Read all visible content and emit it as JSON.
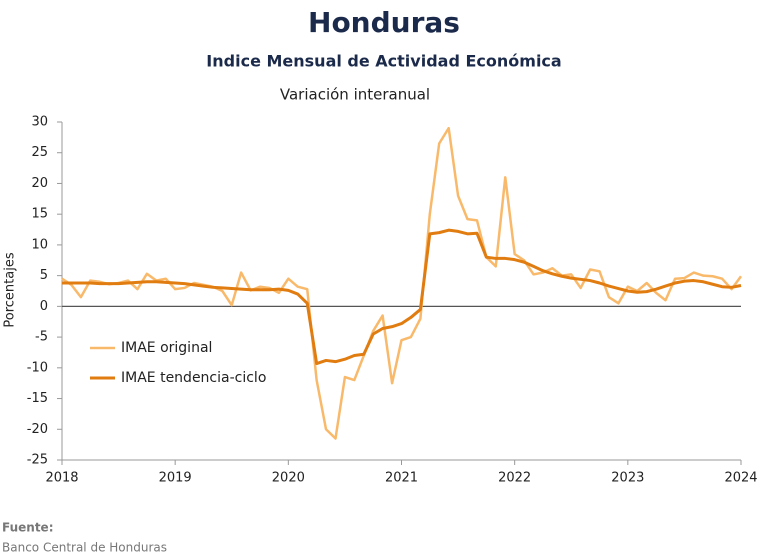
{
  "chart_data": {
    "type": "line",
    "title": "Honduras",
    "subtitle": "Indice Mensual de  Actividad Económica",
    "subtitle2": "Variación interanual",
    "y_label": "Porcentajes",
    "source_label": "Fuente:",
    "source": "Banco Central de Honduras",
    "xlim": [
      2018,
      2024
    ],
    "xticks": [
      2018,
      2019,
      2020,
      2021,
      2022,
      2023,
      2024
    ],
    "ylim": [
      -25,
      30
    ],
    "yticks": [
      -25,
      -20,
      -15,
      -10,
      -5,
      0,
      5,
      10,
      15,
      20,
      25,
      30
    ],
    "legend": "lower left",
    "x": [
      2018,
      2018.083,
      2018.167,
      2018.25,
      2018.333,
      2018.417,
      2018.5,
      2018.583,
      2018.667,
      2018.75,
      2018.833,
      2018.917,
      2019,
      2019.083,
      2019.167,
      2019.25,
      2019.333,
      2019.417,
      2019.5,
      2019.583,
      2019.667,
      2019.75,
      2019.833,
      2019.917,
      2020,
      2020.083,
      2020.167,
      2020.25,
      2020.333,
      2020.417,
      2020.5,
      2020.583,
      2020.667,
      2020.75,
      2020.833,
      2020.917,
      2021,
      2021.083,
      2021.167,
      2021.25,
      2021.333,
      2021.417,
      2021.5,
      2021.583,
      2021.667,
      2021.75,
      2021.833,
      2021.917,
      2022,
      2022.083,
      2022.167,
      2022.25,
      2022.333,
      2022.417,
      2022.5,
      2022.583,
      2022.667,
      2022.75,
      2022.833,
      2022.917,
      2023,
      2023.083,
      2023.167,
      2023.25,
      2023.333,
      2023.417,
      2023.5,
      2023.583,
      2023.667,
      2023.75,
      2023.833,
      2023.917,
      2024
    ],
    "series": [
      {
        "name": "IMAE original",
        "color": "#f9b96b",
        "values": [
          4.5,
          3.5,
          1.5,
          4.2,
          4.0,
          3.6,
          3.8,
          4.2,
          2.8,
          5.3,
          4.2,
          4.5,
          2.8,
          3.0,
          3.8,
          3.5,
          3.2,
          2.5,
          0.2,
          5.5,
          2.6,
          3.2,
          3.0,
          2.2,
          4.5,
          3.2,
          2.8,
          -12,
          -20,
          -21.5,
          -11.5,
          -12,
          -8,
          -4,
          -1.5,
          -12.5,
          -5.5,
          -5,
          -2,
          15,
          26.5,
          29,
          18,
          14.2,
          14,
          8,
          6.5,
          21,
          8.5,
          7.5,
          5.2,
          5.5,
          6.2,
          5,
          5.2,
          3,
          6,
          5.7,
          1.5,
          0.5,
          3.2,
          2.5,
          3.8,
          2.2,
          1.0,
          4.5,
          4.6,
          5.5,
          5.0,
          4.9,
          4.5,
          2.8,
          4.9
        ]
      },
      {
        "name": "IMAE tendencia-ciclo",
        "color": "#e07c10",
        "values": [
          3.8,
          3.8,
          3.8,
          3.8,
          3.7,
          3.7,
          3.7,
          3.8,
          3.9,
          4.0,
          4.0,
          3.9,
          3.8,
          3.7,
          3.5,
          3.3,
          3.1,
          3.0,
          2.9,
          2.8,
          2.7,
          2.7,
          2.7,
          2.8,
          2.6,
          2.0,
          0.5,
          -9.3,
          -8.8,
          -9.0,
          -8.6,
          -8.0,
          -7.8,
          -4.5,
          -3.6,
          -3.3,
          -2.8,
          -1.8,
          -0.5,
          11.8,
          12.0,
          12.4,
          12.2,
          11.8,
          11.9,
          8.0,
          7.8,
          7.8,
          7.6,
          7.2,
          6.5,
          5.8,
          5.3,
          4.9,
          4.6,
          4.4,
          4.2,
          3.8,
          3.3,
          2.9,
          2.5,
          2.3,
          2.4,
          2.8,
          3.3,
          3.8,
          4.1,
          4.2,
          4.0,
          3.6,
          3.2,
          3.1,
          3.4
        ]
      }
    ]
  }
}
